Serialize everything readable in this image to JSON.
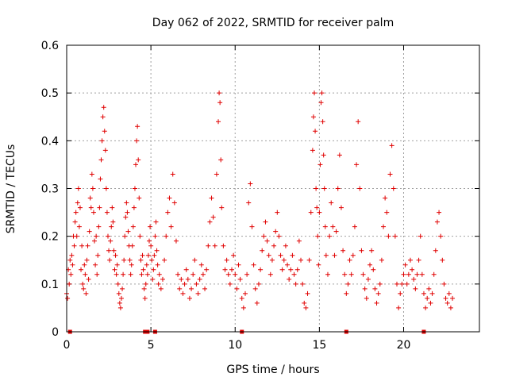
{
  "chart_data": {
    "type": "scatter",
    "title": "Day 062 of 2022, SRMTID for receiver palm",
    "xlabel": "GPS time / hours",
    "ylabel": "SRMTID / TECUs",
    "xlim": [
      0,
      24.5
    ],
    "ylim": [
      0,
      0.6
    ],
    "grid": true,
    "marker": "+",
    "color": "#e00000",
    "x_ticks": [
      0,
      5,
      10,
      15,
      20
    ],
    "y_ticks": [
      0,
      0.1,
      0.2,
      0.3,
      0.4,
      0.5,
      0.6
    ],
    "x_tick_labels": [
      "0",
      "5",
      "10",
      "15",
      "20"
    ],
    "y_tick_labels": [
      "0",
      "0.1",
      "0.2",
      "0.3",
      "0.4",
      "0.5",
      "0.6"
    ],
    "zero_markers_x": [
      0.2,
      4.65,
      4.8,
      5.25,
      10.4,
      16.6,
      21.2
    ],
    "series": [
      {
        "name": "SRMTID",
        "points": [
          [
            0.0,
            0.08
          ],
          [
            0.05,
            0.07
          ],
          [
            0.1,
            0.13
          ],
          [
            0.15,
            0.1
          ],
          [
            0.2,
            0.15
          ],
          [
            0.25,
            0.12
          ],
          [
            0.3,
            0.16
          ],
          [
            0.35,
            0.14
          ],
          [
            0.4,
            0.2
          ],
          [
            0.45,
            0.18
          ],
          [
            0.5,
            0.23
          ],
          [
            0.55,
            0.25
          ],
          [
            0.6,
            0.2
          ],
          [
            0.65,
            0.27
          ],
          [
            0.7,
            0.3
          ],
          [
            0.75,
            0.22
          ],
          [
            0.8,
            0.26
          ],
          [
            0.85,
            0.13
          ],
          [
            0.9,
            0.18
          ],
          [
            0.95,
            0.1
          ],
          [
            1.0,
            0.09
          ],
          [
            1.05,
            0.14
          ],
          [
            1.1,
            0.12
          ],
          [
            1.15,
            0.08
          ],
          [
            1.2,
            0.15
          ],
          [
            1.25,
            0.18
          ],
          [
            1.3,
            0.11
          ],
          [
            1.35,
            0.21
          ],
          [
            1.4,
            0.28
          ],
          [
            1.45,
            0.26
          ],
          [
            1.5,
            0.33
          ],
          [
            1.55,
            0.3
          ],
          [
            1.6,
            0.25
          ],
          [
            1.65,
            0.19
          ],
          [
            1.7,
            0.14
          ],
          [
            1.75,
            0.2
          ],
          [
            1.8,
            0.12
          ],
          [
            1.85,
            0.16
          ],
          [
            1.9,
            0.22
          ],
          [
            1.95,
            0.26
          ],
          [
            2.0,
            0.32
          ],
          [
            2.05,
            0.36
          ],
          [
            2.1,
            0.4
          ],
          [
            2.15,
            0.45
          ],
          [
            2.2,
            0.47
          ],
          [
            2.25,
            0.42
          ],
          [
            2.3,
            0.38
          ],
          [
            2.35,
            0.3
          ],
          [
            2.4,
            0.25
          ],
          [
            2.45,
            0.2
          ],
          [
            2.5,
            0.17
          ],
          [
            2.55,
            0.15
          ],
          [
            2.6,
            0.19
          ],
          [
            2.65,
            0.22
          ],
          [
            2.7,
            0.26
          ],
          [
            2.75,
            0.23
          ],
          [
            2.8,
            0.17
          ],
          [
            2.85,
            0.13
          ],
          [
            2.9,
            0.16
          ],
          [
            2.95,
            0.12
          ],
          [
            3.0,
            0.14
          ],
          [
            3.05,
            0.1
          ],
          [
            3.1,
            0.08
          ],
          [
            3.15,
            0.06
          ],
          [
            3.2,
            0.05
          ],
          [
            3.25,
            0.07
          ],
          [
            3.3,
            0.09
          ],
          [
            3.35,
            0.12
          ],
          [
            3.4,
            0.15
          ],
          [
            3.45,
            0.2
          ],
          [
            3.5,
            0.24
          ],
          [
            3.55,
            0.27
          ],
          [
            3.6,
            0.25
          ],
          [
            3.65,
            0.21
          ],
          [
            3.7,
            0.18
          ],
          [
            3.75,
            0.15
          ],
          [
            3.8,
            0.12
          ],
          [
            3.85,
            0.14
          ],
          [
            3.9,
            0.18
          ],
          [
            3.95,
            0.22
          ],
          [
            4.0,
            0.26
          ],
          [
            4.05,
            0.3
          ],
          [
            4.1,
            0.35
          ],
          [
            4.15,
            0.4
          ],
          [
            4.2,
            0.43
          ],
          [
            4.25,
            0.36
          ],
          [
            4.3,
            0.28
          ],
          [
            4.35,
            0.2
          ],
          [
            4.4,
            0.15
          ],
          [
            4.45,
            0.12
          ],
          [
            4.5,
            0.16
          ],
          [
            4.55,
            0.13
          ],
          [
            4.6,
            0.09
          ],
          [
            4.65,
            0.07
          ],
          [
            4.7,
            0.1
          ],
          [
            4.75,
            0.14
          ],
          [
            4.8,
            0.12
          ],
          [
            4.85,
            0.16
          ],
          [
            4.9,
            0.19
          ],
          [
            4.95,
            0.22
          ],
          [
            5.0,
            0.18
          ],
          [
            5.05,
            0.15
          ],
          [
            5.1,
            0.11
          ],
          [
            5.15,
            0.13
          ],
          [
            5.2,
            0.16
          ],
          [
            5.25,
            0.2
          ],
          [
            5.3,
            0.23
          ],
          [
            5.35,
            0.17
          ],
          [
            5.4,
            0.14
          ],
          [
            5.45,
            0.1
          ],
          [
            5.5,
            0.12
          ],
          [
            5.6,
            0.09
          ],
          [
            5.7,
            0.11
          ],
          [
            5.8,
            0.15
          ],
          [
            5.9,
            0.2
          ],
          [
            6.0,
            0.25
          ],
          [
            6.1,
            0.28
          ],
          [
            6.2,
            0.22
          ],
          [
            6.3,
            0.33
          ],
          [
            6.4,
            0.27
          ],
          [
            6.5,
            0.19
          ],
          [
            6.6,
            0.12
          ],
          [
            6.7,
            0.09
          ],
          [
            6.8,
            0.11
          ],
          [
            6.9,
            0.08
          ],
          [
            7.0,
            0.1
          ],
          [
            7.1,
            0.13
          ],
          [
            7.2,
            0.11
          ],
          [
            7.3,
            0.07
          ],
          [
            7.4,
            0.09
          ],
          [
            7.5,
            0.12
          ],
          [
            7.6,
            0.15
          ],
          [
            7.7,
            0.1
          ],
          [
            7.8,
            0.08
          ],
          [
            7.9,
            0.11
          ],
          [
            8.0,
            0.14
          ],
          [
            8.1,
            0.12
          ],
          [
            8.2,
            0.09
          ],
          [
            8.3,
            0.13
          ],
          [
            8.4,
            0.18
          ],
          [
            8.5,
            0.23
          ],
          [
            8.6,
            0.28
          ],
          [
            8.7,
            0.24
          ],
          [
            8.8,
            0.18
          ],
          [
            8.9,
            0.33
          ],
          [
            9.0,
            0.44
          ],
          [
            9.05,
            0.5
          ],
          [
            9.1,
            0.48
          ],
          [
            9.15,
            0.36
          ],
          [
            9.2,
            0.26
          ],
          [
            9.3,
            0.18
          ],
          [
            9.4,
            0.13
          ],
          [
            9.5,
            0.15
          ],
          [
            9.6,
            0.12
          ],
          [
            9.7,
            0.1
          ],
          [
            9.8,
            0.13
          ],
          [
            9.9,
            0.16
          ],
          [
            10.0,
            0.12
          ],
          [
            10.1,
            0.09
          ],
          [
            10.2,
            0.14
          ],
          [
            10.3,
            0.11
          ],
          [
            10.4,
            0.07
          ],
          [
            10.5,
            0.05
          ],
          [
            10.6,
            0.08
          ],
          [
            10.7,
            0.12
          ],
          [
            10.8,
            0.27
          ],
          [
            10.9,
            0.31
          ],
          [
            11.0,
            0.22
          ],
          [
            11.1,
            0.14
          ],
          [
            11.2,
            0.09
          ],
          [
            11.3,
            0.06
          ],
          [
            11.4,
            0.1
          ],
          [
            11.5,
            0.13
          ],
          [
            11.6,
            0.17
          ],
          [
            11.7,
            0.2
          ],
          [
            11.8,
            0.23
          ],
          [
            11.9,
            0.19
          ],
          [
            12.0,
            0.16
          ],
          [
            12.1,
            0.12
          ],
          [
            12.2,
            0.15
          ],
          [
            12.3,
            0.18
          ],
          [
            12.4,
            0.21
          ],
          [
            12.5,
            0.25
          ],
          [
            12.6,
            0.2
          ],
          [
            12.7,
            0.16
          ],
          [
            12.8,
            0.13
          ],
          [
            12.9,
            0.15
          ],
          [
            13.0,
            0.18
          ],
          [
            13.1,
            0.14
          ],
          [
            13.2,
            0.11
          ],
          [
            13.3,
            0.13
          ],
          [
            13.4,
            0.16
          ],
          [
            13.5,
            0.12
          ],
          [
            13.6,
            0.1
          ],
          [
            13.7,
            0.13
          ],
          [
            13.8,
            0.19
          ],
          [
            13.9,
            0.15
          ],
          [
            14.0,
            0.1
          ],
          [
            14.1,
            0.06
          ],
          [
            14.2,
            0.05
          ],
          [
            14.3,
            0.08
          ],
          [
            14.4,
            0.15
          ],
          [
            14.5,
            0.25
          ],
          [
            14.6,
            0.38
          ],
          [
            14.65,
            0.45
          ],
          [
            14.7,
            0.5
          ],
          [
            14.75,
            0.42
          ],
          [
            14.8,
            0.3
          ],
          [
            14.85,
            0.26
          ],
          [
            14.9,
            0.2
          ],
          [
            14.95,
            0.14
          ],
          [
            15.0,
            0.25
          ],
          [
            15.05,
            0.35
          ],
          [
            15.1,
            0.48
          ],
          [
            15.15,
            0.5
          ],
          [
            15.2,
            0.44
          ],
          [
            15.25,
            0.37
          ],
          [
            15.3,
            0.3
          ],
          [
            15.35,
            0.22
          ],
          [
            15.4,
            0.16
          ],
          [
            15.5,
            0.12
          ],
          [
            15.6,
            0.2
          ],
          [
            15.7,
            0.27
          ],
          [
            15.8,
            0.22
          ],
          [
            15.9,
            0.16
          ],
          [
            16.0,
            0.21
          ],
          [
            16.1,
            0.3
          ],
          [
            16.2,
            0.37
          ],
          [
            16.3,
            0.26
          ],
          [
            16.4,
            0.17
          ],
          [
            16.5,
            0.12
          ],
          [
            16.6,
            0.08
          ],
          [
            16.7,
            0.1
          ],
          [
            16.8,
            0.15
          ],
          [
            16.9,
            0.12
          ],
          [
            17.0,
            0.16
          ],
          [
            17.1,
            0.22
          ],
          [
            17.2,
            0.35
          ],
          [
            17.3,
            0.44
          ],
          [
            17.4,
            0.3
          ],
          [
            17.5,
            0.17
          ],
          [
            17.6,
            0.12
          ],
          [
            17.7,
            0.09
          ],
          [
            17.8,
            0.07
          ],
          [
            17.9,
            0.11
          ],
          [
            18.0,
            0.14
          ],
          [
            18.1,
            0.17
          ],
          [
            18.2,
            0.13
          ],
          [
            18.3,
            0.09
          ],
          [
            18.4,
            0.06
          ],
          [
            18.5,
            0.08
          ],
          [
            18.6,
            0.1
          ],
          [
            18.7,
            0.15
          ],
          [
            18.8,
            0.22
          ],
          [
            18.9,
            0.28
          ],
          [
            19.0,
            0.25
          ],
          [
            19.1,
            0.2
          ],
          [
            19.2,
            0.33
          ],
          [
            19.3,
            0.39
          ],
          [
            19.4,
            0.3
          ],
          [
            19.5,
            0.2
          ],
          [
            19.6,
            0.1
          ],
          [
            19.7,
            0.05
          ],
          [
            19.8,
            0.08
          ],
          [
            19.9,
            0.1
          ],
          [
            20.0,
            0.12
          ],
          [
            20.1,
            0.14
          ],
          [
            20.2,
            0.1
          ],
          [
            20.3,
            0.12
          ],
          [
            20.4,
            0.15
          ],
          [
            20.5,
            0.13
          ],
          [
            20.6,
            0.11
          ],
          [
            20.7,
            0.09
          ],
          [
            20.8,
            0.12
          ],
          [
            20.9,
            0.15
          ],
          [
            21.0,
            0.2
          ],
          [
            21.1,
            0.12
          ],
          [
            21.2,
            0.08
          ],
          [
            21.3,
            0.05
          ],
          [
            21.4,
            0.07
          ],
          [
            21.5,
            0.09
          ],
          [
            21.6,
            0.06
          ],
          [
            21.7,
            0.08
          ],
          [
            21.8,
            0.12
          ],
          [
            21.9,
            0.17
          ],
          [
            22.0,
            0.23
          ],
          [
            22.1,
            0.25
          ],
          [
            22.2,
            0.2
          ],
          [
            22.3,
            0.15
          ],
          [
            22.4,
            0.1
          ],
          [
            22.5,
            0.07
          ],
          [
            22.6,
            0.06
          ],
          [
            22.7,
            0.08
          ],
          [
            22.8,
            0.05
          ],
          [
            22.9,
            0.07
          ]
        ]
      }
    ]
  }
}
